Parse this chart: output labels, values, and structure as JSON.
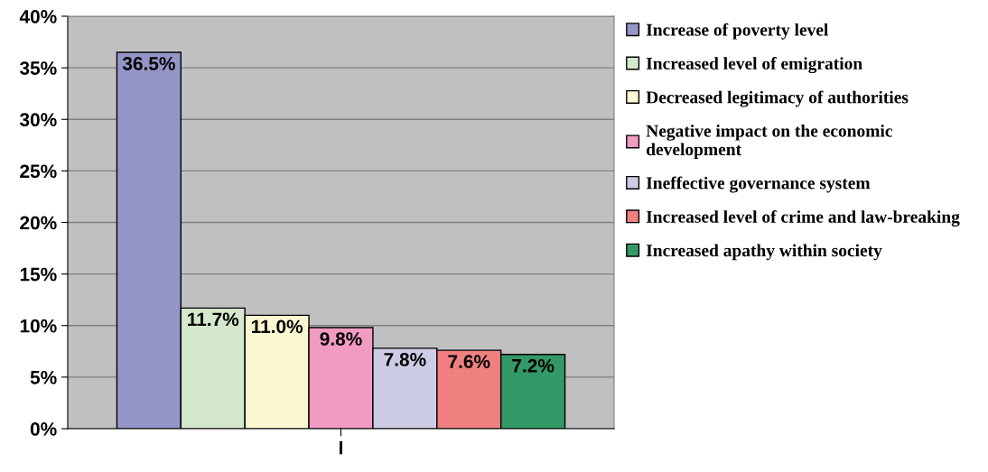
{
  "chart_data": {
    "type": "bar",
    "categories": [
      "I"
    ],
    "series": [
      {
        "name": "Increase of poverty level",
        "color": "#9495c8",
        "values": [
          36.5
        ],
        "value_labels": [
          "36.5%"
        ]
      },
      {
        "name": "Increased level of emigration",
        "color": "#d4e8cc",
        "values": [
          11.7
        ],
        "value_labels": [
          "11.7%"
        ]
      },
      {
        "name": "Decreased legitimacy of authorities",
        "color": "#fbf7d0",
        "values": [
          11.0
        ],
        "value_labels": [
          "11.0%"
        ]
      },
      {
        "name": "Negative impact on the economic development",
        "color": "#f29bc1",
        "values": [
          9.8
        ],
        "value_labels": [
          "9.8%"
        ]
      },
      {
        "name": "Ineffective governance system",
        "color": "#cccce6",
        "values": [
          7.8
        ],
        "value_labels": [
          "7.8%"
        ]
      },
      {
        "name": "Increased level of crime and law-breaking",
        "color": "#f08080",
        "values": [
          7.6
        ],
        "value_labels": [
          "7.6%"
        ]
      },
      {
        "name": "Increased apathy within society",
        "color": "#339966",
        "values": [
          7.2
        ],
        "value_labels": [
          "7.2%"
        ]
      }
    ],
    "ylim": [
      0,
      40
    ],
    "yticks": [
      {
        "value": 0,
        "label": "0%"
      },
      {
        "value": 5,
        "label": "5%"
      },
      {
        "value": 10,
        "label": "10%"
      },
      {
        "value": 15,
        "label": "15%"
      },
      {
        "value": 20,
        "label": "20%"
      },
      {
        "value": 25,
        "label": "25%"
      },
      {
        "value": 30,
        "label": "30%"
      },
      {
        "value": 35,
        "label": "35%"
      },
      {
        "value": 40,
        "label": "40%"
      }
    ],
    "grid": "y",
    "legend": "right"
  }
}
